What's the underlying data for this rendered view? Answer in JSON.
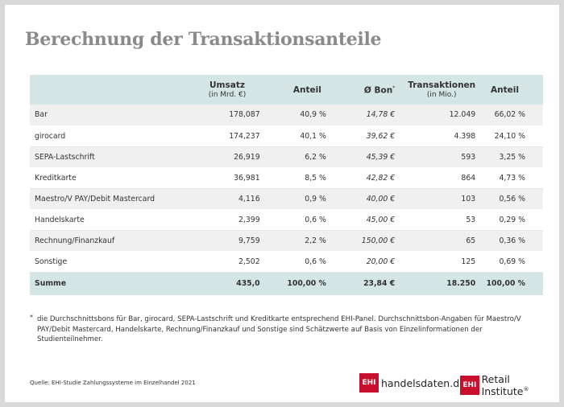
{
  "title": "Berechnung der Transaktionsanteile",
  "table": {
    "headers": {
      "umsatz": "Umsatz",
      "umsatz_sub": "(in Mrd. €)",
      "anteil": "Anteil",
      "bon": "Ø Bon",
      "bon_mark": "*",
      "transaktionen": "Transaktionen",
      "transaktionen_sub": "(in Mio.)",
      "anteil2": "Anteil"
    },
    "rows": [
      {
        "name": "Bar",
        "umsatz": "178,087",
        "anteil": "40,9 %",
        "bon": "14,78 €",
        "tx": "12.049",
        "anteil2": "66,02 %"
      },
      {
        "name": "girocard",
        "umsatz": "174,237",
        "anteil": "40,1 %",
        "bon": "39,62 €",
        "tx": "4.398",
        "anteil2": "24,10 %"
      },
      {
        "name": "SEPA-Lastschrift",
        "umsatz": "26,919",
        "anteil": "6,2 %",
        "bon": "45,39 €",
        "tx": "593",
        "anteil2": "3,25 %"
      },
      {
        "name": "Kreditkarte",
        "umsatz": "36,981",
        "anteil": "8,5 %",
        "bon": "42,82 €",
        "tx": "864",
        "anteil2": "4,73 %"
      },
      {
        "name": "Maestro/V PAY/Debit Mastercard",
        "umsatz": "4,116",
        "anteil": "0,9 %",
        "bon": "40,00 €",
        "tx": "103",
        "anteil2": "0,56 %"
      },
      {
        "name": "Handelskarte",
        "umsatz": "2,399",
        "anteil": "0,6 %",
        "bon": "45,00 €",
        "tx": "53",
        "anteil2": "0,29 %"
      },
      {
        "name": "Rechnung/Finanzkauf",
        "umsatz": "9,759",
        "anteil": "2,2 %",
        "bon": "150,00 €",
        "tx": "65",
        "anteil2": "0,36 %"
      },
      {
        "name": "Sonstige",
        "umsatz": "2,502",
        "anteil": "0,6 %",
        "bon": "20,00 €",
        "tx": "125",
        "anteil2": "0,69 %"
      }
    ],
    "sum": {
      "name": "Summe",
      "umsatz": "435,0",
      "anteil": "100,00 %",
      "bon": "23,84 €",
      "tx": "18.250",
      "anteil2": "100,00 %"
    }
  },
  "footnote": {
    "mark": "*",
    "text": "die Durchschnittsbons für Bar, girocard, SEPA-Lastschrift und Kreditkarte entsprechend EHI-Panel. Durchschnittsbon-Angaben für Maestro/V PAY/Debit Mastercard, Handelskarte, Rechnung/Finanzkauf und Sonstige sind Schätzwerte auf Basis von Einzelinformationen der Studienteilnehmer."
  },
  "source": "Quelle: EHI-Studie Zahlungssysteme im Einzelhandel 2021",
  "logos": {
    "logo1_box": "EHI",
    "logo1_text": "handelsdaten.de",
    "logo2_box": "EHI",
    "logo2_text": "Retail Institute",
    "logo2_mark": "®"
  },
  "colors": {
    "header_bg": "#d3e6e5",
    "title": "#8a8a8a",
    "logo_red": "#c8102e"
  }
}
